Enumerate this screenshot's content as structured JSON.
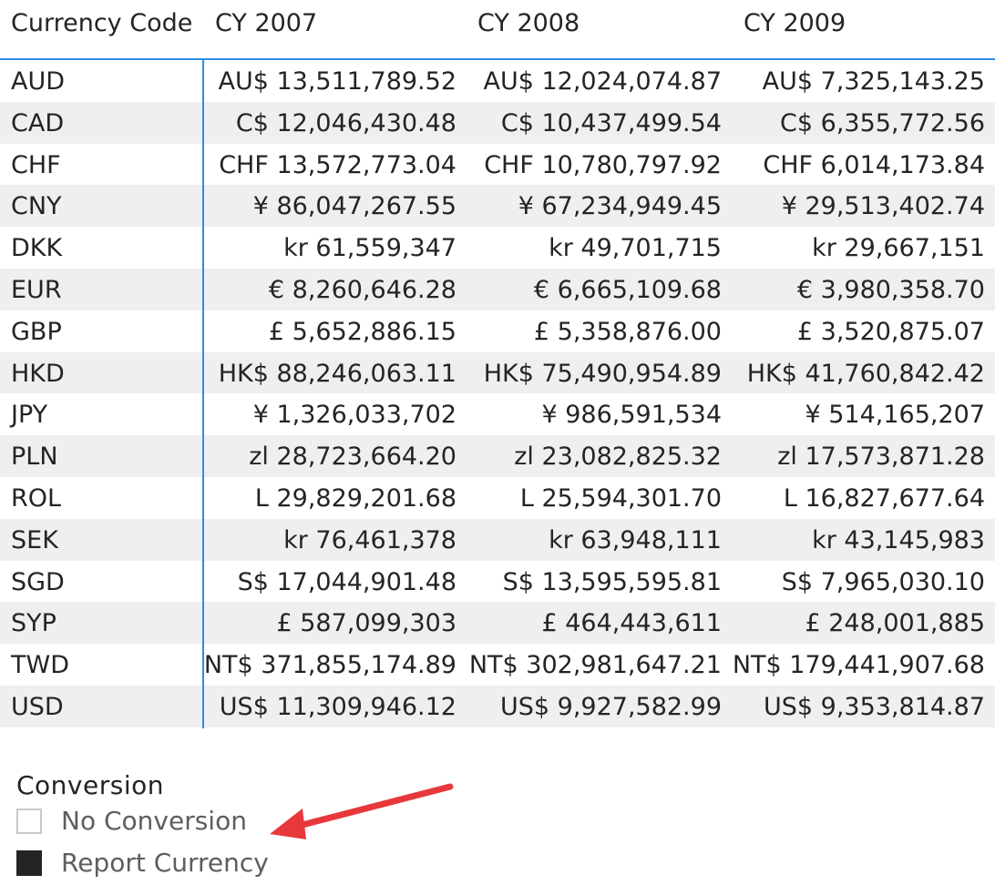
{
  "matrix": {
    "headers": [
      "Currency Code",
      "CY 2007",
      "CY 2008",
      "CY 2009"
    ],
    "rows": [
      {
        "code": "AUD",
        "cy2007": "AU$ 13,511,789.52",
        "cy2008": "AU$ 12,024,074.87",
        "cy2009": "AU$ 7,325,143.25"
      },
      {
        "code": "CAD",
        "cy2007": "C$ 12,046,430.48",
        "cy2008": "C$ 10,437,499.54",
        "cy2009": "C$ 6,355,772.56"
      },
      {
        "code": "CHF",
        "cy2007": "CHF 13,572,773.04",
        "cy2008": "CHF 10,780,797.92",
        "cy2009": "CHF 6,014,173.84"
      },
      {
        "code": "CNY",
        "cy2007": "¥ 86,047,267.55",
        "cy2008": "¥ 67,234,949.45",
        "cy2009": "¥ 29,513,402.74"
      },
      {
        "code": "DKK",
        "cy2007": "kr 61,559,347",
        "cy2008": "kr 49,701,715",
        "cy2009": "kr 29,667,151"
      },
      {
        "code": "EUR",
        "cy2007": "€ 8,260,646.28",
        "cy2008": "€ 6,665,109.68",
        "cy2009": "€ 3,980,358.70"
      },
      {
        "code": "GBP",
        "cy2007": "£ 5,652,886.15",
        "cy2008": "£ 5,358,876.00",
        "cy2009": "£ 3,520,875.07"
      },
      {
        "code": "HKD",
        "cy2007": "HK$ 88,246,063.11",
        "cy2008": "HK$ 75,490,954.89",
        "cy2009": "HK$ 41,760,842.42"
      },
      {
        "code": "JPY",
        "cy2007": "¥ 1,326,033,702",
        "cy2008": "¥ 986,591,534",
        "cy2009": "¥ 514,165,207"
      },
      {
        "code": "PLN",
        "cy2007": "zl 28,723,664.20",
        "cy2008": "zl 23,082,825.32",
        "cy2009": "zl 17,573,871.28"
      },
      {
        "code": "ROL",
        "cy2007": "L 29,829,201.68",
        "cy2008": "L 25,594,301.70",
        "cy2009": "L 16,827,677.64"
      },
      {
        "code": "SEK",
        "cy2007": "kr 76,461,378",
        "cy2008": "kr 63,948,111",
        "cy2009": "kr 43,145,983"
      },
      {
        "code": "SGD",
        "cy2007": "S$ 17,044,901.48",
        "cy2008": "S$ 13,595,595.81",
        "cy2009": "S$ 7,965,030.10"
      },
      {
        "code": "SYP",
        "cy2007": "£ 587,099,303",
        "cy2008": "£ 464,443,611",
        "cy2009": "£ 248,001,885"
      },
      {
        "code": "TWD",
        "cy2007": "NT$ 371,855,174.89",
        "cy2008": "NT$ 302,981,647.21",
        "cy2009": "NT$ 179,441,907.68"
      },
      {
        "code": "USD",
        "cy2007": "US$ 11,309,946.12",
        "cy2008": "US$ 9,927,582.99",
        "cy2009": "US$ 9,353,814.87"
      }
    ]
  },
  "slicer": {
    "title": "Conversion",
    "options": [
      {
        "label": "No Conversion",
        "checked": false
      },
      {
        "label": "Report Currency",
        "checked": true
      }
    ]
  },
  "colors": {
    "accent_divider": "#2f8de4",
    "stripe_row": "#efefef",
    "annotation_arrow": "#e8383b",
    "checkbox_checked": "#252423"
  },
  "annotation": {
    "icon": "arrow-left-annotation-icon"
  }
}
